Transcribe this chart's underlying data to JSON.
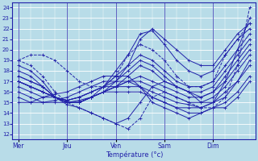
{
  "bg_color": "#b8dce8",
  "grid_color": "#ffffff",
  "line_color": "#2222aa",
  "days_labels": [
    "Mer",
    "Jeu",
    "Ven",
    "Sam",
    "Dim"
  ],
  "days_positions": [
    0,
    4,
    8,
    12,
    16
  ],
  "xlim": [
    -0.5,
    19.5
  ],
  "ylim": [
    11.5,
    24.5
  ],
  "yticks": [
    12,
    13,
    14,
    15,
    16,
    17,
    18,
    19,
    20,
    21,
    22,
    23,
    24
  ],
  "xlabel": "Température (°c)",
  "series": [
    [
      19.0,
      18.5,
      17.5,
      16.0,
      15.0,
      14.5,
      14.0,
      13.5,
      13.0,
      12.5,
      13.5,
      15.5,
      16.0,
      15.5,
      15.0,
      14.5,
      14.5,
      15.5,
      18.5,
      24.0
    ],
    [
      18.5,
      18.0,
      17.0,
      15.5,
      14.8,
      14.5,
      14.0,
      13.5,
      13.0,
      13.5,
      15.0,
      16.5,
      17.0,
      16.5,
      16.0,
      15.0,
      15.0,
      17.0,
      20.0,
      23.0
    ],
    [
      18.0,
      17.5,
      16.5,
      15.5,
      15.0,
      15.0,
      15.5,
      16.0,
      17.0,
      18.5,
      21.0,
      22.0,
      21.0,
      20.0,
      19.0,
      18.5,
      18.5,
      20.0,
      21.5,
      22.5
    ],
    [
      17.5,
      17.0,
      16.5,
      15.5,
      15.0,
      15.0,
      15.5,
      16.5,
      18.0,
      19.5,
      21.5,
      21.8,
      20.5,
      19.0,
      18.0,
      17.5,
      18.0,
      19.5,
      21.0,
      22.0
    ],
    [
      17.5,
      17.0,
      16.5,
      15.5,
      15.2,
      15.5,
      16.0,
      16.5,
      17.5,
      18.5,
      19.5,
      19.0,
      18.0,
      17.0,
      16.5,
      16.5,
      17.0,
      18.5,
      20.0,
      21.5
    ],
    [
      17.0,
      16.5,
      16.0,
      15.5,
      15.2,
      15.5,
      16.0,
      16.5,
      17.0,
      18.0,
      19.0,
      18.5,
      17.5,
      16.5,
      16.0,
      16.0,
      16.5,
      18.0,
      19.5,
      21.0
    ],
    [
      17.0,
      16.5,
      16.0,
      15.5,
      15.0,
      15.0,
      15.5,
      16.0,
      16.5,
      17.5,
      18.5,
      18.0,
      17.0,
      16.5,
      16.0,
      15.5,
      16.0,
      17.5,
      19.0,
      20.5
    ],
    [
      17.0,
      16.5,
      16.0,
      15.5,
      15.0,
      15.0,
      15.5,
      16.0,
      16.5,
      17.0,
      17.5,
      17.0,
      16.5,
      16.0,
      15.5,
      15.5,
      16.0,
      17.0,
      18.5,
      20.0
    ],
    [
      17.0,
      16.5,
      16.0,
      15.5,
      15.0,
      15.0,
      15.5,
      16.0,
      16.5,
      17.0,
      17.0,
      16.5,
      16.0,
      15.5,
      15.0,
      15.0,
      15.5,
      16.5,
      18.0,
      19.5
    ],
    [
      16.5,
      16.0,
      15.5,
      15.5,
      15.2,
      15.5,
      16.0,
      16.5,
      16.5,
      16.5,
      16.5,
      16.0,
      15.5,
      15.0,
      14.8,
      14.5,
      15.0,
      16.0,
      17.0,
      19.0
    ],
    [
      16.0,
      15.5,
      15.0,
      15.0,
      15.0,
      15.2,
      15.5,
      16.0,
      16.0,
      16.0,
      16.0,
      15.5,
      15.0,
      14.5,
      14.5,
      14.5,
      15.0,
      15.5,
      17.0,
      18.5
    ],
    [
      15.5,
      15.0,
      15.0,
      15.2,
      15.5,
      16.0,
      16.5,
      17.0,
      17.0,
      17.0,
      16.5,
      15.5,
      15.0,
      14.5,
      14.0,
      14.0,
      14.5,
      15.0,
      16.0,
      17.5
    ],
    [
      15.0,
      15.0,
      15.5,
      15.8,
      16.0,
      16.5,
      17.0,
      17.5,
      17.5,
      17.5,
      16.5,
      15.0,
      14.5,
      14.0,
      13.5,
      14.0,
      14.5,
      14.5,
      15.5,
      17.0
    ],
    [
      19.0,
      19.5,
      19.5,
      19.0,
      18.0,
      17.0,
      16.5,
      16.5,
      17.5,
      19.5,
      20.5,
      20.0,
      19.0,
      17.5,
      16.5,
      16.5,
      17.0,
      19.5,
      21.0,
      22.5
    ]
  ]
}
